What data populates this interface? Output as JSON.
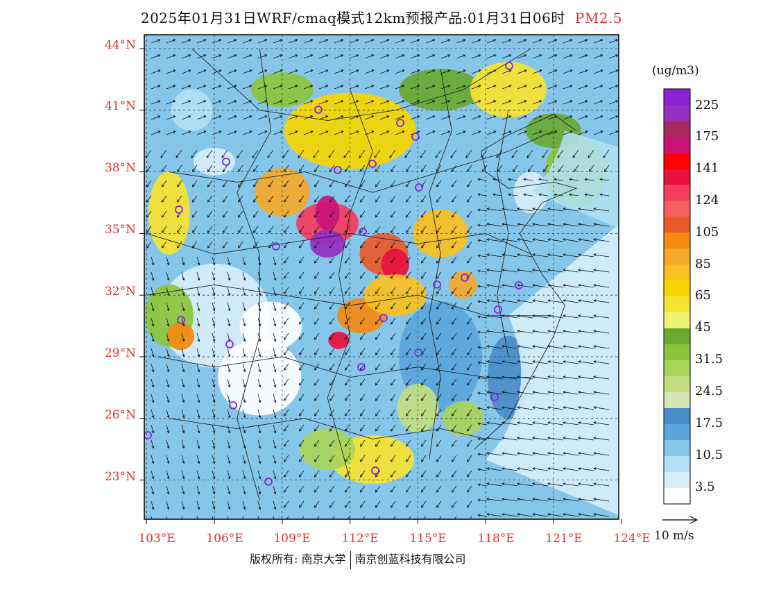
{
  "title": {
    "main": "2025年01月31日WRF/cmaq模式12km预报产品:01月31日06时",
    "variable": "PM2.5"
  },
  "map": {
    "lat_ticks": [
      "44°N",
      "41°N",
      "38°N",
      "35°N",
      "32°N",
      "29°N",
      "26°N",
      "23°N"
    ],
    "lon_ticks": [
      "103°E",
      "106°E",
      "109°E",
      "112°E",
      "115°E",
      "118°E",
      "121°E",
      "124°E"
    ],
    "station_marker": "purple-circle"
  },
  "colorbar": {
    "unit": "(ug/m3)",
    "colors": [
      "#ffffff",
      "#d6eefa",
      "#b2e0f4",
      "#86c6ea",
      "#5aa6dc",
      "#4a8cc8",
      "#d7e6b6",
      "#c2de80",
      "#a8d45a",
      "#8cc43c",
      "#6aa830",
      "#eef272",
      "#f6e230",
      "#f6d600",
      "#f8c020",
      "#f6a82a",
      "#f48a10",
      "#e85a2a",
      "#f66060",
      "#f43c5c",
      "#e8103c",
      "#ff0000",
      "#c8137a",
      "#a82a5a",
      "#9430c0",
      "#8a22d8"
    ],
    "labels": [
      "3.5",
      "10.5",
      "17.5",
      "24.5",
      "31.5",
      "45",
      "65",
      "85",
      "105",
      "124",
      "141",
      "175",
      "225"
    ]
  },
  "wind_reference": "10 m/s",
  "copyright": {
    "prefix": "版权所有:",
    "org1": "南京大学",
    "org2": "南京创蓝科技有限公司"
  }
}
